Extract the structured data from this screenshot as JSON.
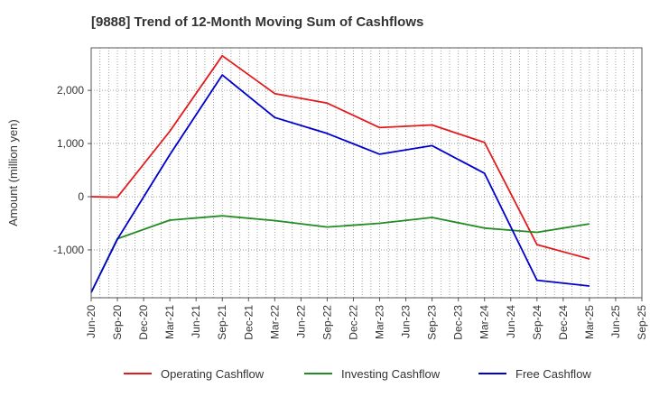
{
  "chart_data": {
    "type": "line",
    "title": "[9888]  Trend of 12-Month Moving Sum of Cashflows",
    "xlabel": "",
    "ylabel": "Amount (million yen)",
    "categories": [
      "Jun-20",
      "Sep-20",
      "Dec-20",
      "Mar-21",
      "Jun-21",
      "Sep-21",
      "Dec-21",
      "Mar-22",
      "Jun-22",
      "Sep-22",
      "Dec-22",
      "Mar-23",
      "Jun-23",
      "Sep-23",
      "Dec-23",
      "Mar-24",
      "Jun-24",
      "Sep-24",
      "Dec-24",
      "Mar-25",
      "Jun-25",
      "Sep-25"
    ],
    "ylim": [
      -1900,
      2800
    ],
    "yticks": [
      2000,
      1000,
      0,
      -1000
    ],
    "ytick_labels": [
      "2,000",
      "1,000",
      "0",
      "-1,000"
    ],
    "grid": true,
    "legend_position": "bottom",
    "series": [
      {
        "name": "Operating Cashflow",
        "color": "#e31a1c",
        "values": [
          0,
          -10,
          null,
          1230,
          null,
          2650,
          null,
          1940,
          null,
          1760,
          null,
          1300,
          null,
          1350,
          null,
          1020,
          null,
          -900,
          null,
          -1170,
          null,
          null
        ]
      },
      {
        "name": "Investing Cashflow",
        "color": "#228b22",
        "values": [
          -1800,
          -790,
          null,
          -440,
          null,
          -360,
          null,
          -450,
          null,
          -570,
          null,
          -500,
          null,
          -390,
          null,
          -590,
          null,
          -670,
          null,
          -510,
          null,
          null
        ]
      },
      {
        "name": "Free Cashflow",
        "color": "#0000cc",
        "values": [
          -1800,
          -800,
          null,
          790,
          null,
          2290,
          null,
          1490,
          null,
          1190,
          null,
          800,
          null,
          960,
          null,
          440,
          null,
          -1570,
          null,
          -1680,
          null,
          null
        ]
      }
    ]
  }
}
